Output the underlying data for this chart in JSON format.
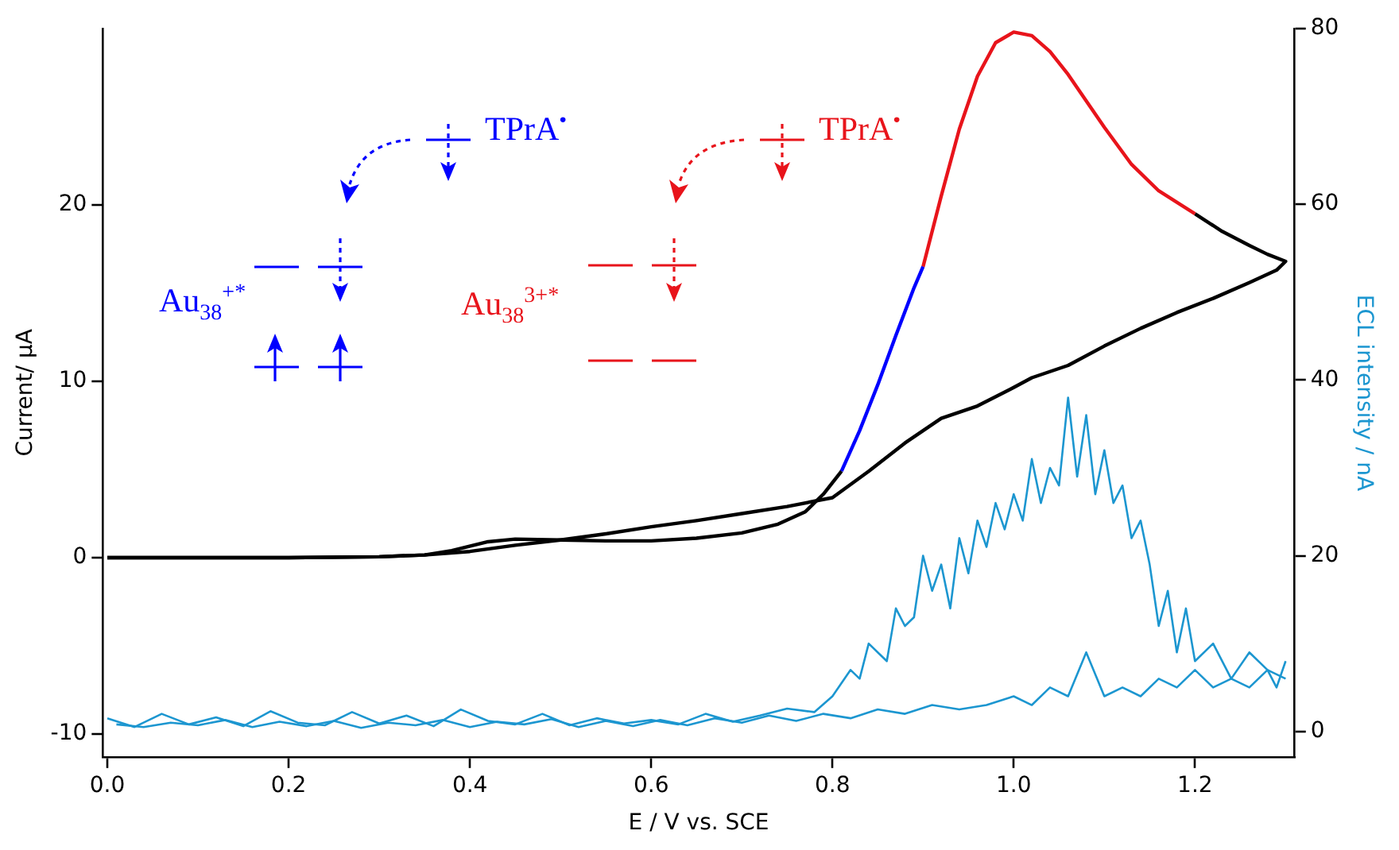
{
  "chart_data": {
    "type": "line",
    "xlabel": "E / V vs. SCE",
    "ylabel": "Current/ μA",
    "y2label": "ECL intensity / nA",
    "xlim": [
      -0.005,
      1.31
    ],
    "ylim": [
      -11.3,
      30
    ],
    "y2lim": [
      -2.9,
      80
    ],
    "xticks": [
      {
        "value": 0,
        "label": "0.0"
      },
      {
        "value": 0.2,
        "label": "0.2"
      },
      {
        "value": 0.4,
        "label": "0.4"
      },
      {
        "value": 0.6,
        "label": "0.6"
      },
      {
        "value": 0.8,
        "label": "0.8"
      },
      {
        "value": 1,
        "label": "1.0"
      },
      {
        "value": 1.2,
        "label": "1.2"
      }
    ],
    "yticks": [
      -10,
      0,
      10,
      20
    ],
    "y2ticks": [
      0,
      20,
      40,
      60,
      80
    ],
    "grid": false,
    "legend": false,
    "marker": "none",
    "annotations": [
      "TPrA$^{•}$",
      "Au$_{38}$$^{+*}$",
      "TPrA$^{•}$",
      "Au$_{38}$$^{3+*}$"
    ],
    "series": [
      {
        "color": "#000000",
        "x": [
          0,
          0.1,
          0.2,
          0.3,
          0.35,
          0.38,
          0.42,
          0.45,
          0.5,
          0.55,
          0.6,
          0.65,
          0.7,
          0.74,
          0.77,
          0.79,
          0.81
        ],
        "values": [
          0,
          0,
          0,
          0.05,
          0.15,
          0.4,
          0.9,
          1.05,
          1.0,
          0.95,
          0.95,
          1.1,
          1.4,
          1.9,
          2.6,
          3.6,
          4.9
        ]
      },
      {
        "color": "#0000ff",
        "x": [
          0.81,
          0.83,
          0.85,
          0.87,
          0.89,
          0.9
        ],
        "values": [
          4.9,
          7.2,
          9.8,
          12.6,
          15.3,
          16.5
        ]
      },
      {
        "color": "#e8141b",
        "x": [
          0.9,
          0.92,
          0.94,
          0.96,
          0.98,
          1.0,
          1.02,
          1.04,
          1.06,
          1.08,
          1.1,
          1.13,
          1.16,
          1.2
        ],
        "values": [
          16.5,
          20.5,
          24.3,
          27.3,
          29.2,
          29.8,
          29.6,
          28.7,
          27.4,
          25.9,
          24.4,
          22.3,
          20.8,
          19.5
        ]
      },
      {
        "color": "#000000",
        "x": [
          1.2,
          1.23,
          1.26,
          1.28,
          1.3,
          1.29,
          1.26,
          1.22,
          1.18,
          1.14,
          1.1,
          1.06,
          1.02,
          1.0,
          0.96,
          0.92,
          0.88,
          0.84,
          0.8,
          0.75,
          0.7,
          0.65,
          0.6,
          0.55,
          0.5,
          0.45,
          0.4,
          0.35,
          0.3,
          0.2,
          0.1,
          0
        ],
        "values": [
          19.5,
          18.5,
          17.7,
          17.2,
          16.8,
          16.3,
          15.6,
          14.7,
          13.9,
          13.0,
          12.0,
          10.9,
          10.2,
          9.65,
          8.6,
          7.9,
          6.5,
          4.9,
          3.4,
          2.9,
          2.5,
          2.1,
          1.75,
          1.35,
          1.0,
          0.7,
          0.35,
          0.15,
          0.05,
          0,
          0,
          0
        ]
      },
      {
        "axis": "y2",
        "color": "#1c96d0",
        "x": [
          0,
          0.03,
          0.06,
          0.09,
          0.12,
          0.15,
          0.18,
          0.21,
          0.24,
          0.27,
          0.3,
          0.33,
          0.36,
          0.39,
          0.42,
          0.45,
          0.48,
          0.51,
          0.54,
          0.57,
          0.6,
          0.63,
          0.66,
          0.69,
          0.72,
          0.75,
          0.78,
          0.8,
          0.82,
          0.83,
          0.84,
          0.85,
          0.86,
          0.87,
          0.88,
          0.89,
          0.9,
          0.91,
          0.92,
          0.93,
          0.94,
          0.95,
          0.96,
          0.97,
          0.98,
          0.99,
          1.0,
          1.01,
          1.02,
          1.03,
          1.04,
          1.05,
          1.06,
          1.07,
          1.08,
          1.09,
          1.1,
          1.11,
          1.12,
          1.13,
          1.14,
          1.15,
          1.16,
          1.17,
          1.18,
          1.19,
          1.2,
          1.22,
          1.24,
          1.26,
          1.28,
          1.29,
          1.3
        ],
        "values": [
          1.5,
          0.5,
          2,
          0.8,
          1.6,
          0.6,
          2.3,
          1,
          0.7,
          2.2,
          0.9,
          1.8,
          0.6,
          2.5,
          1.2,
          0.8,
          2,
          0.7,
          1.5,
          0.9,
          1.3,
          0.8,
          2,
          1.1,
          1.8,
          2.6,
          2.2,
          4,
          7,
          6,
          10,
          9,
          8,
          14,
          12,
          13,
          20,
          16,
          19,
          14,
          22,
          18,
          24,
          21,
          26,
          23,
          27,
          24,
          31,
          26,
          30,
          28,
          38,
          29,
          36,
          27,
          32,
          26,
          28,
          22,
          24,
          19,
          12,
          16,
          9,
          14,
          8,
          10,
          6,
          9,
          7,
          5,
          8
        ]
      },
      {
        "axis": "y2",
        "color": "#1c96d0",
        "x": [
          1.3,
          1.28,
          1.26,
          1.24,
          1.22,
          1.2,
          1.18,
          1.16,
          1.14,
          1.12,
          1.1,
          1.08,
          1.06,
          1.04,
          1.02,
          1.0,
          0.97,
          0.94,
          0.91,
          0.88,
          0.85,
          0.82,
          0.79,
          0.76,
          0.73,
          0.7,
          0.67,
          0.64,
          0.61,
          0.58,
          0.55,
          0.52,
          0.49,
          0.46,
          0.43,
          0.4,
          0.37,
          0.34,
          0.31,
          0.28,
          0.25,
          0.22,
          0.19,
          0.16,
          0.13,
          0.1,
          0.07,
          0.04,
          0.01
        ],
        "values": [
          6,
          7,
          5,
          6,
          5,
          7,
          5,
          6,
          4,
          5,
          4,
          9,
          4,
          5,
          3,
          4,
          3,
          2.5,
          3,
          2,
          2.5,
          1.5,
          2,
          1.2,
          1.8,
          1,
          1.5,
          0.7,
          1.3,
          0.6,
          1.2,
          0.5,
          1.4,
          0.8,
          1.1,
          0.5,
          1.3,
          0.7,
          1,
          0.4,
          1.2,
          0.6,
          1.1,
          0.5,
          1.3,
          0.7,
          1,
          0.5,
          0.8
        ]
      }
    ]
  }
}
